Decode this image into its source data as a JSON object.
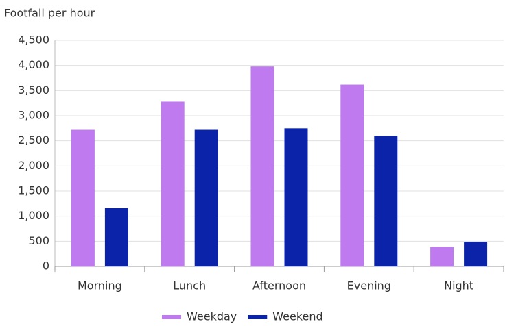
{
  "chart_data": {
    "type": "bar",
    "title": "Footfall per hour",
    "categories": [
      "Morning",
      "Lunch",
      "Afternoon",
      "Evening",
      "Night"
    ],
    "series": [
      {
        "name": "Weekday",
        "color": "#bf7af0",
        "values": [
          2720,
          3280,
          3980,
          3620,
          390
        ]
      },
      {
        "name": "Weekend",
        "color": "#0a23a8",
        "values": [
          1160,
          2720,
          2750,
          2600,
          490
        ]
      }
    ],
    "ylim": [
      0,
      4500
    ],
    "yticks": [
      0,
      500,
      {
        "value": 1000,
        "label": "1,000"
      },
      {
        "value": 1500,
        "label": "1,500"
      },
      {
        "value": 2000,
        "label": "2,000"
      },
      {
        "value": 2500,
        "label": "2,500"
      },
      {
        "value": 3000,
        "label": "3,000"
      },
      {
        "value": 3500,
        "label": "3,500"
      },
      {
        "value": 4000,
        "label": "4,000"
      },
      {
        "value": 4500,
        "label": "4,500"
      }
    ],
    "grid": true,
    "legend": "bottom"
  }
}
